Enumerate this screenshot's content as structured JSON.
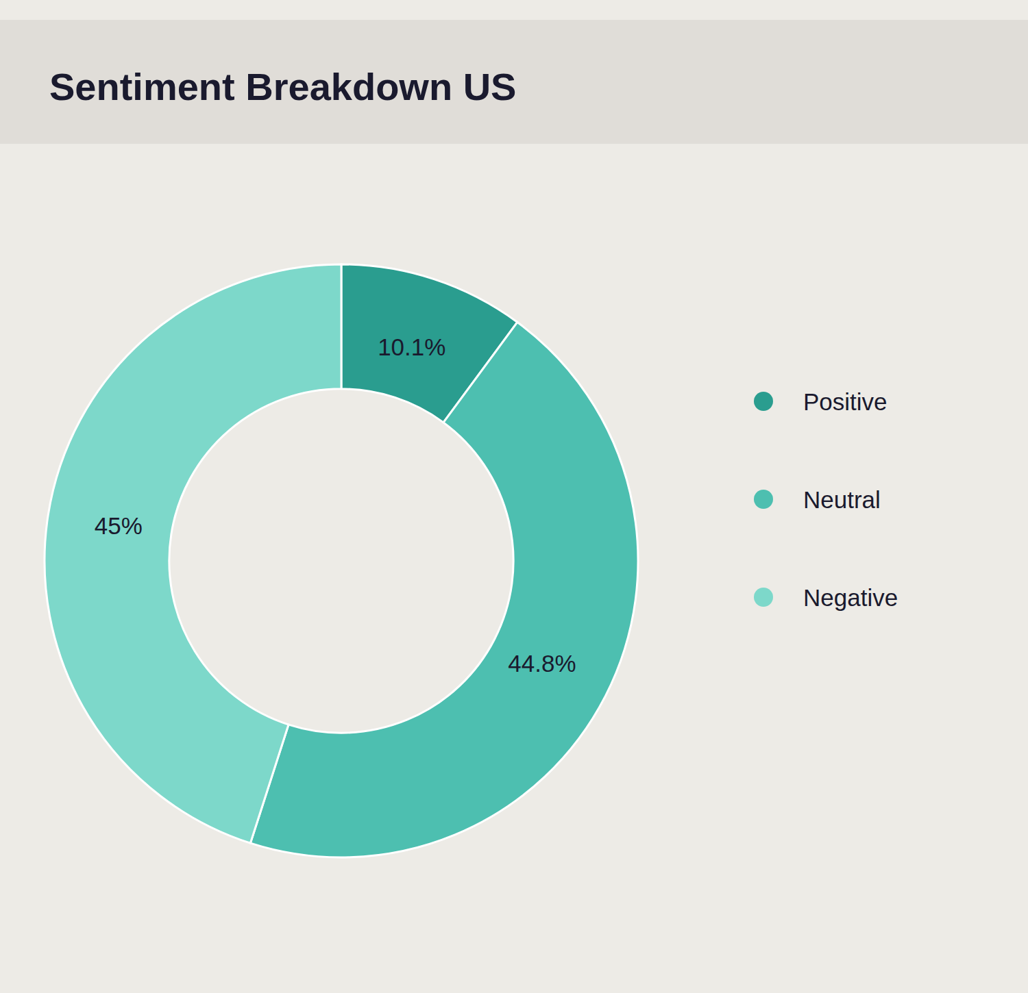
{
  "chart_data": {
    "type": "donut",
    "title": "Sentiment Breakdown US",
    "categories": [
      "Positive",
      "Neutral",
      "Negative"
    ],
    "values": [
      10.1,
      44.8,
      45.0
    ],
    "value_labels": [
      "10.1%",
      "44.8%",
      "45%"
    ],
    "colors": [
      "#2A9D8F",
      "#4DBFB0",
      "#7DD8CA"
    ],
    "data_labels": true,
    "legend": "right"
  }
}
